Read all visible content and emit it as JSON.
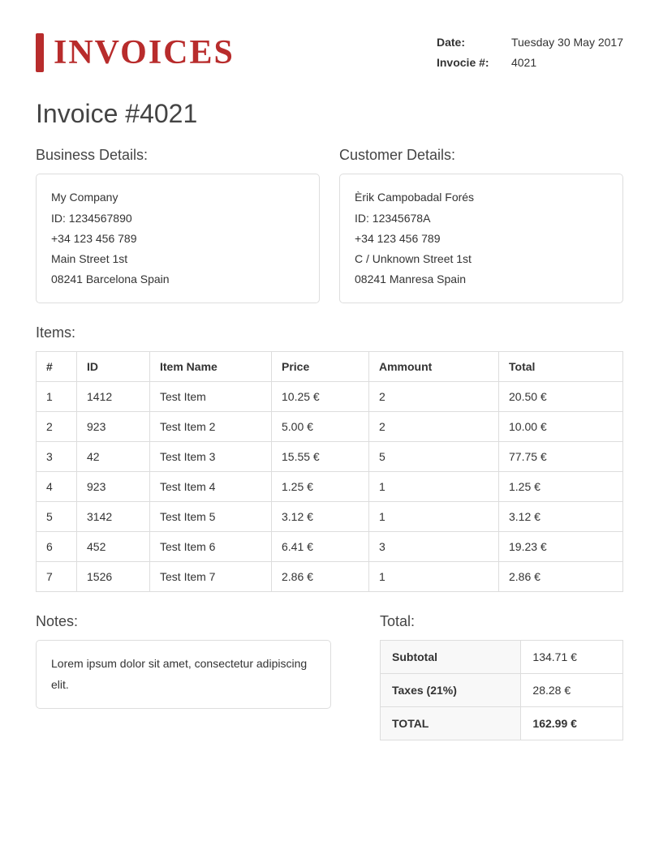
{
  "logo_text": "INVOICES",
  "meta": {
    "date_label": "Date:",
    "date_value": "Tuesday 30 May 2017",
    "invno_label": "Invocie #:",
    "invno_value": "4021"
  },
  "title": "Invoice #4021",
  "business": {
    "heading": "Business Details:",
    "name": "My Company",
    "id": "ID: 1234567890",
    "phone": "+34 123 456 789",
    "street": "Main Street 1st",
    "city": "08241 Barcelona Spain"
  },
  "customer": {
    "heading": "Customer Details:",
    "name": "Èrik Campobadal Forés",
    "id": "ID: 12345678A",
    "phone": "+34 123 456 789",
    "street": "C / Unknown Street 1st",
    "city": "08241 Manresa Spain"
  },
  "items_heading": "Items:",
  "items_columns": [
    "#",
    "ID",
    "Item Name",
    "Price",
    "Ammount",
    "Total"
  ],
  "items": [
    {
      "n": "1",
      "id": "1412",
      "name": "Test Item",
      "price": "10.25 €",
      "amount": "2",
      "total": "20.50 €"
    },
    {
      "n": "2",
      "id": "923",
      "name": "Test Item 2",
      "price": "5.00 €",
      "amount": "2",
      "total": "10.00 €"
    },
    {
      "n": "3",
      "id": "42",
      "name": "Test Item 3",
      "price": "15.55 €",
      "amount": "5",
      "total": "77.75 €"
    },
    {
      "n": "4",
      "id": "923",
      "name": "Test Item 4",
      "price": "1.25 €",
      "amount": "1",
      "total": "1.25 €"
    },
    {
      "n": "5",
      "id": "3142",
      "name": "Test Item 5",
      "price": "3.12 €",
      "amount": "1",
      "total": "3.12 €"
    },
    {
      "n": "6",
      "id": "452",
      "name": "Test Item 6",
      "price": "6.41 €",
      "amount": "3",
      "total": "19.23 €"
    },
    {
      "n": "7",
      "id": "1526",
      "name": "Test Item 7",
      "price": "2.86 €",
      "amount": "1",
      "total": "2.86 €"
    }
  ],
  "notes": {
    "heading": "Notes:",
    "text": "Lorem ipsum dolor sit amet, consectetur adipiscing elit."
  },
  "totals": {
    "heading": "Total:",
    "subtotal_label": "Subtotal",
    "subtotal_value": "134.71 €",
    "taxes_label": "Taxes (21%)",
    "taxes_value": "28.28 €",
    "grand_label": "TOTAL",
    "grand_value": "162.99 €"
  },
  "styling": {
    "brand_color": "#b82c2c",
    "border_color": "#dddddd",
    "text_color": "#333333",
    "heading_color": "#444444",
    "background": "#ffffff",
    "totals_shade": "#f8f8f8",
    "body_fontsize": 14,
    "h1_fontsize": 32,
    "section_fontsize": 18,
    "logo_fontsize": 42
  }
}
